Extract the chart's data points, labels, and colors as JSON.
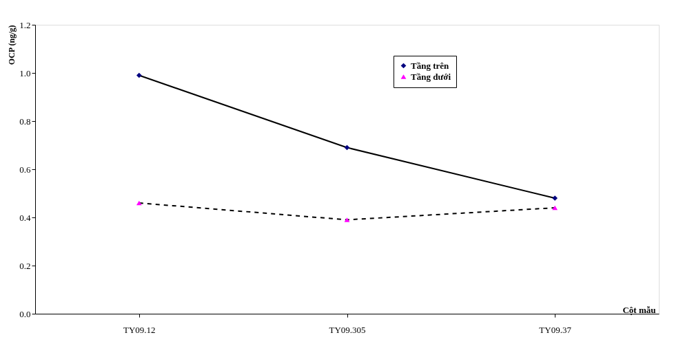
{
  "chart_data": {
    "type": "line",
    "ylabel": "OCP (ng/g)",
    "xlabel": "Cột mẫu",
    "categories": [
      "TY09.12",
      "TY09.305",
      "TY09.37"
    ],
    "series": [
      {
        "name": "Tầng trên",
        "color": "#000080",
        "values": [
          0.99,
          0.69,
          0.48
        ],
        "marker": "diamond",
        "line_style": "solid"
      },
      {
        "name": "Tầng dưới",
        "color": "#ff00ff",
        "values": [
          0.46,
          0.39,
          0.44
        ],
        "marker": "triangle",
        "line_style": "dashed"
      }
    ],
    "ylim": [
      0,
      1.2
    ],
    "yticks": [
      {
        "value": 0,
        "label": "0.0"
      },
      {
        "value": 0.2,
        "label": "0.2"
      },
      {
        "value": 0.4,
        "label": "0.4"
      },
      {
        "value": 0.6,
        "label": "0.6"
      },
      {
        "value": 0.8,
        "label": "0.8"
      },
      {
        "value": 1.0,
        "label": "1.0"
      },
      {
        "value": 1.2,
        "label": "1.2"
      }
    ],
    "grid": false,
    "legend": "top right"
  }
}
